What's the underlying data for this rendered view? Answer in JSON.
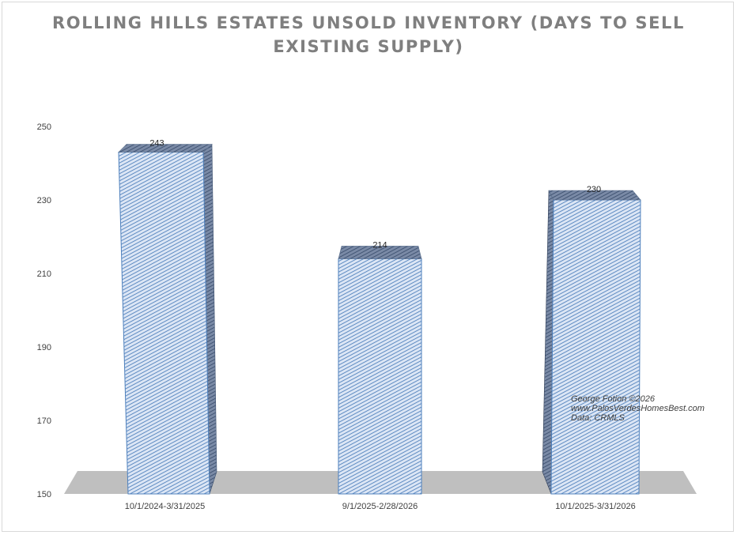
{
  "chart_data": {
    "type": "bar",
    "style": "3d-cylinder-like columns with diagonal hatch fill",
    "title_lines": [
      "ROLLING HILLS ESTATES UNSOLD INVENTORY (DAYS TO SELL",
      "EXISTING SUPPLY)"
    ],
    "categories": [
      "10/1/2024-3/31/2025",
      "9/1/2025-2/28/2026",
      "10/1/2025-3/31/2026"
    ],
    "values": [
      243,
      214,
      230
    ],
    "data_labels": [
      "243",
      "214",
      "230"
    ],
    "ylim": [
      150,
      250
    ],
    "y_ticks": [
      "250",
      "230",
      "210",
      "190",
      "170",
      "150"
    ],
    "grid": false,
    "legend": "none"
  },
  "annotation": {
    "lines": [
      "George Fotion ©2026",
      "www.PalosVerdesHomesBest.com",
      "Data: CRMLS"
    ]
  },
  "colors": {
    "title": "#7f7f7f",
    "bar_fill": "#dce6f5",
    "bar_hatch": "#4f81bd",
    "bar_top": "#8497b0",
    "bar_side": "#5a6f8c",
    "floor": "#bfbfbf",
    "frame": "#d9d9d9"
  }
}
